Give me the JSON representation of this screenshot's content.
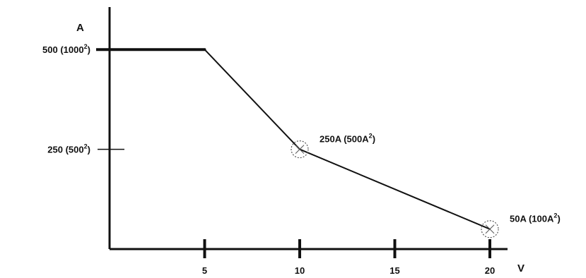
{
  "chart_data": {
    "type": "line",
    "xlabel": "V",
    "ylabel": "A",
    "xlim": [
      0,
      21.5
    ],
    "ylim": [
      0,
      575
    ],
    "x_ticks": [
      {
        "value": 5,
        "label": "5"
      },
      {
        "value": 10,
        "label": "10"
      },
      {
        "value": 15,
        "label": "15"
      },
      {
        "value": 20,
        "label": "20"
      }
    ],
    "y_ticks": [
      {
        "value": 500,
        "label": "500 (1000",
        "sup": "2",
        "close": ")"
      },
      {
        "value": 250,
        "label": "250 (500",
        "sup": "2",
        "close": ")"
      }
    ],
    "series": [
      {
        "x": [
          0,
          5,
          10,
          20
        ],
        "y": [
          500,
          500,
          250,
          50
        ]
      }
    ],
    "annotations": [
      {
        "x": 10,
        "y": 250,
        "text": "250A (500A",
        "sup": "2",
        "close": ")"
      },
      {
        "x": 20,
        "y": 50,
        "text": "50A (100A",
        "sup": "2",
        "close": ")"
      }
    ],
    "grid": false,
    "legend": "none"
  },
  "colors": {
    "line": "#111111",
    "marker": "#555555",
    "background": "#ffffff"
  }
}
